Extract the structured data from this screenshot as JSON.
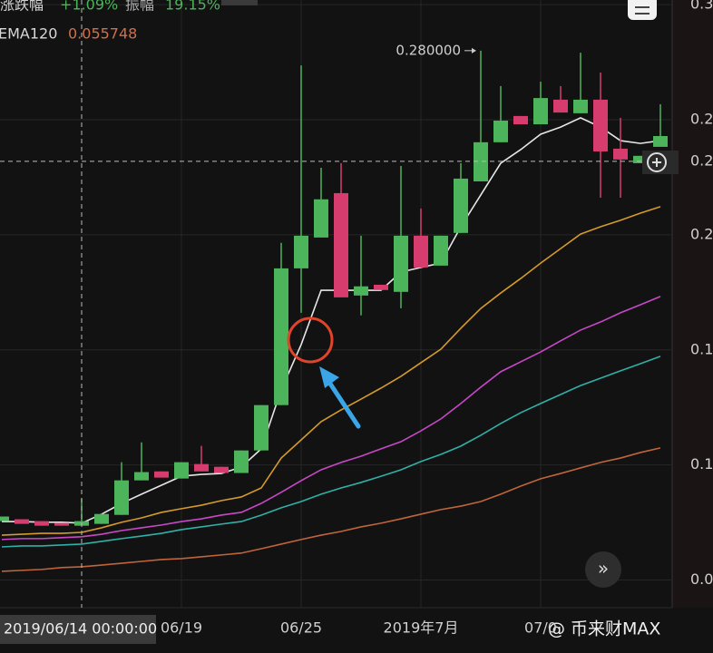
{
  "chart_data": {
    "type": "candlestick",
    "stats": [
      {
        "name": "涨跌幅",
        "value": "+1.09%"
      },
      {
        "name": "振幅",
        "value": "19.15%"
      }
    ],
    "categories": [
      null,
      null,
      null,
      null,
      null,
      null,
      null,
      null,
      null,
      "06/19",
      null,
      null,
      null,
      null,
      null,
      "06/25",
      null,
      null,
      null,
      null,
      null,
      "2019年7月",
      null,
      null,
      null,
      null,
      null,
      "07/0",
      null,
      null,
      null,
      null,
      null,
      null
    ],
    "open": [
      0.0756,
      0.0764,
      0.0756,
      0.0748,
      0.0736,
      0.0744,
      0.0783,
      0.0933,
      0.0972,
      0.0941,
      0.1004,
      0.0992,
      0.0965,
      0.1063,
      0.126,
      0.1854,
      0.1988,
      0.2181,
      0.1736,
      0.1783,
      0.1752,
      0.1996,
      0.1866,
      0.2008,
      0.2232,
      0.2402,
      0.2516,
      0.248,
      0.2587,
      0.2528,
      0.2587,
      0.2374,
      0.2311,
      0.2382
    ],
    "high": [
      0.0776,
      0.0764,
      0.0756,
      0.0748,
      0.0854,
      0.0787,
      0.1012,
      0.1098,
      0.0972,
      0.1012,
      0.1083,
      0.0992,
      0.1063,
      0.126,
      0.1965,
      0.2736,
      0.2291,
      0.2311,
      0.1996,
      0.1783,
      0.2299,
      0.2114,
      0.1996,
      0.2311,
      0.28,
      0.2646,
      0.2516,
      0.2665,
      0.2646,
      0.2791,
      0.2705,
      0.2508,
      0.2343,
      0.2567
    ],
    "low": [
      0.0756,
      0.0744,
      0.0736,
      0.0736,
      0.0736,
      0.0744,
      0.0783,
      0.0933,
      0.0945,
      0.0941,
      0.0972,
      0.0965,
      0.0965,
      0.1063,
      0.126,
      0.1661,
      0.1988,
      0.1728,
      0.165,
      0.176,
      0.1681,
      0.1858,
      0.1866,
      0.2008,
      0.2232,
      0.2402,
      0.248,
      0.248,
      0.2531,
      0.2528,
      0.2161,
      0.2161,
      0.2311,
      0.2382
    ],
    "close": [
      0.0776,
      0.0744,
      0.0736,
      0.0736,
      0.0756,
      0.0787,
      0.0933,
      0.0969,
      0.0945,
      0.1012,
      0.0972,
      0.0965,
      0.1063,
      0.126,
      0.1854,
      0.1996,
      0.2154,
      0.1728,
      0.1776,
      0.176,
      0.1996,
      0.1858,
      0.1996,
      0.2244,
      0.2402,
      0.2496,
      0.248,
      0.2594,
      0.2531,
      0.2587,
      0.2362,
      0.2327,
      0.2343,
      0.2429
    ],
    "up_color": "#4cb45a",
    "down_color": "#d63c6e",
    "lines": [
      {
        "color": "#e6e6e6",
        "values": [
          0.0754,
          0.0754,
          0.0751,
          0.0751,
          0.0747,
          0.0786,
          0.0833,
          0.0873,
          0.0912,
          0.0951,
          0.0959,
          0.0963,
          0.0991,
          0.107,
          0.1326,
          0.1523,
          0.1759,
          0.1759,
          0.1759,
          0.1759,
          0.1838,
          0.1858,
          0.1877,
          0.2035,
          0.2173,
          0.2311,
          0.237,
          0.2437,
          0.2468,
          0.2508,
          0.2468,
          0.2409,
          0.2397,
          0.2409
        ]
      },
      {
        "color": "#d49a2a",
        "values": [
          0.0695,
          0.0699,
          0.0703,
          0.0703,
          0.0707,
          0.0727,
          0.0751,
          0.077,
          0.0794,
          0.081,
          0.0825,
          0.0845,
          0.0861,
          0.09,
          0.103,
          0.1109,
          0.1188,
          0.1239,
          0.1286,
          0.1334,
          0.1385,
          0.1444,
          0.1503,
          0.1594,
          0.168,
          0.1747,
          0.181,
          0.1877,
          0.194,
          0.2003,
          0.2035,
          0.2063,
          0.2094,
          0.2122
        ]
      },
      {
        "color": "#c848c8",
        "values": [
          0.0676,
          0.068,
          0.068,
          0.0684,
          0.0688,
          0.0699,
          0.0715,
          0.0727,
          0.0739,
          0.0754,
          0.0766,
          0.0782,
          0.0794,
          0.0833,
          0.0881,
          0.0932,
          0.0979,
          0.1011,
          0.1038,
          0.107,
          0.1101,
          0.1148,
          0.12,
          0.1267,
          0.1338,
          0.1405,
          0.1448,
          0.1491,
          0.1539,
          0.1586,
          0.1621,
          0.1661,
          0.1696,
          0.1732
        ]
      },
      {
        "color": "#2fb0a8",
        "values": [
          0.0644,
          0.0648,
          0.0648,
          0.0652,
          0.0656,
          0.0668,
          0.068,
          0.0691,
          0.0703,
          0.0719,
          0.0731,
          0.0743,
          0.0754,
          0.0782,
          0.0814,
          0.0841,
          0.0873,
          0.09,
          0.0924,
          0.0951,
          0.0979,
          0.1015,
          0.1046,
          0.1082,
          0.1129,
          0.118,
          0.1227,
          0.1267,
          0.1306,
          0.1345,
          0.1377,
          0.1409,
          0.144,
          0.1472
        ]
      },
      {
        "name": "EMA120",
        "color": "#c0643c",
        "values": [
          0.0538,
          0.0542,
          0.0546,
          0.0554,
          0.055748,
          0.0565,
          0.0573,
          0.0581,
          0.0589,
          0.0593,
          0.0601,
          0.0609,
          0.0617,
          0.0636,
          0.0656,
          0.0676,
          0.0695,
          0.0711,
          0.0731,
          0.0747,
          0.0766,
          0.0786,
          0.0806,
          0.0821,
          0.0841,
          0.0873,
          0.0908,
          0.094,
          0.0963,
          0.0987,
          0.1011,
          0.103,
          0.1054,
          0.1074
        ]
      }
    ],
    "ylim": [
      0.038,
      0.302
    ],
    "yticks": [
      {
        "value": 0.3,
        "label": "0.3"
      },
      {
        "value": 0.25,
        "label": "0.2"
      },
      {
        "value": 0.2,
        "label": "0.2"
      },
      {
        "value": 0.15,
        "label": "0.1"
      },
      {
        "value": 0.1,
        "label": "0.1"
      },
      {
        "value": 0.05,
        "label": "0.0"
      }
    ],
    "grid": true,
    "max_label": {
      "value": 0.28,
      "label": "0.280000"
    },
    "crosshair": {
      "label": "2019/06/14 00:00:00",
      "price": {
        "value": 0.2319,
        "label": "0.2"
      }
    },
    "watermark": "@ 币来财MAX"
  }
}
